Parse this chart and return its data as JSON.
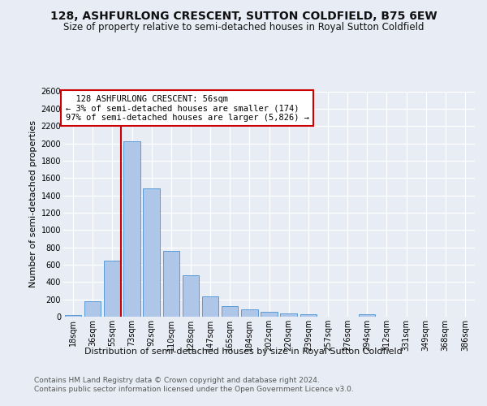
{
  "title": "128, ASHFURLONG CRESCENT, SUTTON COLDFIELD, B75 6EW",
  "subtitle": "Size of property relative to semi-detached houses in Royal Sutton Coldfield",
  "xlabel_bottom": "Distribution of semi-detached houses by size in Royal Sutton Coldfield",
  "ylabel": "Number of semi-detached properties",
  "footer1": "Contains HM Land Registry data © Crown copyright and database right 2024.",
  "footer2": "Contains public sector information licensed under the Open Government Licence v3.0.",
  "bin_labels": [
    "18sqm",
    "36sqm",
    "55sqm",
    "73sqm",
    "92sqm",
    "110sqm",
    "128sqm",
    "147sqm",
    "165sqm",
    "184sqm",
    "202sqm",
    "220sqm",
    "239sqm",
    "257sqm",
    "276sqm",
    "294sqm",
    "312sqm",
    "331sqm",
    "349sqm",
    "368sqm",
    "386sqm"
  ],
  "bar_values": [
    20,
    175,
    650,
    2020,
    1480,
    760,
    480,
    235,
    120,
    80,
    60,
    35,
    25,
    0,
    0,
    25,
    0,
    0,
    0,
    0,
    0
  ],
  "bar_color": "#aec6e8",
  "bar_edgecolor": "#5b9bd5",
  "property_line_idx": 2,
  "property_label": "128 ASHFURLONG CRESCENT: 56sqm",
  "smaller_pct": "3%",
  "smaller_n": "174",
  "larger_pct": "97%",
  "larger_n": "5,826",
  "annotation_box_edgecolor": "#cc0000",
  "line_color": "#cc0000",
  "ylim": [
    0,
    2600
  ],
  "yticks": [
    0,
    200,
    400,
    600,
    800,
    1000,
    1200,
    1400,
    1600,
    1800,
    2000,
    2200,
    2400,
    2600
  ],
  "bg_color": "#e8edf5",
  "grid_color": "#ffffff",
  "title_fontsize": 10,
  "subtitle_fontsize": 8.5,
  "axis_label_fontsize": 8,
  "tick_fontsize": 7,
  "footer_fontsize": 6.5,
  "ann_fontsize": 7.5
}
